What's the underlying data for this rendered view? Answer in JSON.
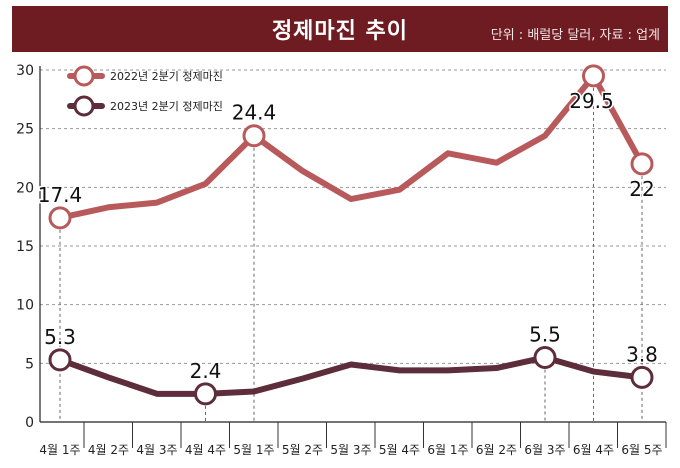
{
  "header": {
    "title": "정제마진 추이",
    "unit_source": "단위 : 배럴당 달러, 자료 : 업계"
  },
  "chart_data": {
    "type": "line",
    "title": "정제마진 추이",
    "subtitle": "단위 : 배럴당 달러, 자료 : 업계",
    "categories": [
      "4월 1주",
      "4월 2주",
      "4월 3주",
      "4월 4주",
      "5월 1주",
      "5월 2주",
      "5월 3주",
      "5월 4주",
      "6월 1주",
      "6월 2주",
      "6월 3주",
      "6월 4주",
      "6월 5주"
    ],
    "ylim": [
      0,
      30
    ],
    "yticks": [
      0,
      5,
      10,
      15,
      20,
      25,
      30
    ],
    "grid": true,
    "legend": "top-left",
    "series": [
      {
        "name": "2022년 2분기 정제마진",
        "color": "#b85a5c",
        "values": [
          17.4,
          18.3,
          18.7,
          20.3,
          24.4,
          21.4,
          19.0,
          19.8,
          22.9,
          22.1,
          24.4,
          29.5,
          22.0
        ],
        "labels": [
          "17.4",
          "",
          "",
          "",
          "24.4",
          "",
          "",
          "",
          "",
          "",
          "",
          "29.5",
          "22"
        ]
      },
      {
        "name": "2023년 2분기 정제마진",
        "color": "#5e2d3c",
        "values": [
          5.3,
          3.8,
          2.4,
          2.4,
          2.6,
          3.7,
          4.9,
          4.4,
          4.4,
          4.6,
          5.5,
          4.3,
          3.8
        ],
        "labels": [
          "5.3",
          "",
          "",
          "2.4",
          "",
          "",
          "",
          "",
          "",
          "",
          "5.5",
          "",
          "3.8"
        ]
      }
    ]
  }
}
